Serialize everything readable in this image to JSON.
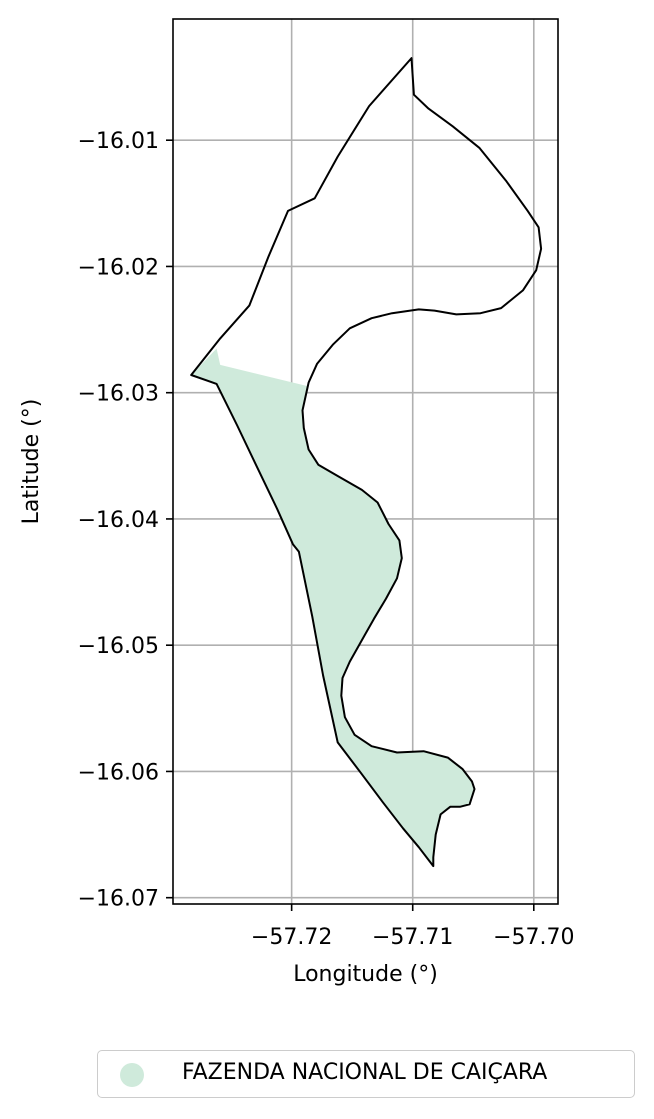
{
  "map": {
    "xlabel": "Longitude (°)",
    "ylabel": "Latitude (°)",
    "xlim": [
      -57.7298,
      -57.698
    ],
    "ylim": [
      -16.0705,
      -16.0004
    ],
    "xticks": [
      {
        "value": -57.72,
        "label": "−57.72"
      },
      {
        "value": -57.71,
        "label": "−57.71"
      },
      {
        "value": -57.7,
        "label": "−57.70"
      }
    ],
    "yticks": [
      {
        "value": -16.01,
        "label": "−16.01"
      },
      {
        "value": -16.02,
        "label": "−16.02"
      },
      {
        "value": -16.03,
        "label": "−16.03"
      },
      {
        "value": -16.04,
        "label": "−16.04"
      },
      {
        "value": -16.05,
        "label": "−16.05"
      },
      {
        "value": -16.06,
        "label": "−16.06"
      },
      {
        "value": -16.07,
        "label": "−16.07"
      }
    ],
    "grid": true,
    "fill_color": "#cfeadb",
    "outline_color": "#000000",
    "boundary": [
      [
        -57.7101,
        -16.0035
      ],
      [
        -57.7099,
        -16.0064
      ],
      [
        -57.7087,
        -16.0075
      ],
      [
        -57.7067,
        -16.0089
      ],
      [
        -57.7045,
        -16.0106
      ],
      [
        -57.7023,
        -16.0132
      ],
      [
        -57.7005,
        -16.0156
      ],
      [
        -57.6996,
        -16.0169
      ],
      [
        -57.6994,
        -16.0186
      ],
      [
        -57.6998,
        -16.0203
      ],
      [
        -57.7009,
        -16.0219
      ],
      [
        -57.7027,
        -16.0233
      ],
      [
        -57.7044,
        -16.0237
      ],
      [
        -57.7064,
        -16.0238
      ],
      [
        -57.7082,
        -16.0235
      ],
      [
        -57.7095,
        -16.0234
      ],
      [
        -57.7117,
        -16.0237
      ],
      [
        -57.7134,
        -16.0241
      ],
      [
        -57.7152,
        -16.0249
      ],
      [
        -57.7166,
        -16.0262
      ],
      [
        -57.7179,
        -16.0277
      ],
      [
        -57.7186,
        -16.0292
      ],
      [
        -57.7191,
        -16.0314
      ],
      [
        -57.719,
        -16.0328
      ],
      [
        -57.7186,
        -16.0345
      ],
      [
        -57.7178,
        -16.0357
      ],
      [
        -57.7162,
        -16.0366
      ],
      [
        -57.7142,
        -16.0377
      ],
      [
        -57.7129,
        -16.0387
      ],
      [
        -57.712,
        -16.0404
      ],
      [
        -57.7111,
        -16.0417
      ],
      [
        -57.7109,
        -16.0431
      ],
      [
        -57.7113,
        -16.0447
      ],
      [
        -57.7122,
        -16.0463
      ],
      [
        -57.7132,
        -16.0479
      ],
      [
        -57.7142,
        -16.0496
      ],
      [
        -57.7152,
        -16.0513
      ],
      [
        -57.7158,
        -16.0526
      ],
      [
        -57.7159,
        -16.054
      ],
      [
        -57.7156,
        -16.0557
      ],
      [
        -57.7148,
        -16.0571
      ],
      [
        -57.7134,
        -16.058
      ],
      [
        -57.7113,
        -16.0585
      ],
      [
        -57.7091,
        -16.0584
      ],
      [
        -57.7071,
        -16.0589
      ],
      [
        -57.7059,
        -16.0598
      ],
      [
        -57.7051,
        -16.0608
      ],
      [
        -57.7049,
        -16.0614
      ],
      [
        -57.7053,
        -16.0626
      ],
      [
        -57.7061,
        -16.0628
      ],
      [
        -57.7069,
        -16.0628
      ],
      [
        -57.7077,
        -16.0634
      ],
      [
        -57.7081,
        -16.065
      ],
      [
        -57.7083,
        -16.0668
      ],
      [
        -57.7083,
        -16.0675
      ],
      [
        -57.7095,
        -16.066
      ],
      [
        -57.7108,
        -16.0645
      ],
      [
        -57.7125,
        -16.0624
      ],
      [
        -57.7143,
        -16.0601
      ],
      [
        -57.7162,
        -16.0577
      ],
      [
        -57.7174,
        -16.0524
      ],
      [
        -57.7183,
        -16.0477
      ],
      [
        -57.7194,
        -16.0426
      ],
      [
        -57.7199,
        -16.042
      ],
      [
        -57.7212,
        -16.0392
      ],
      [
        -57.7229,
        -16.0358
      ],
      [
        -57.7245,
        -16.0326
      ],
      [
        -57.7262,
        -16.0293
      ],
      [
        -57.7283,
        -16.0286
      ],
      [
        -57.7259,
        -16.0257
      ],
      [
        -57.7235,
        -16.0231
      ],
      [
        -57.7219,
        -16.0192
      ],
      [
        -57.7203,
        -16.0156
      ],
      [
        -57.7181,
        -16.0146
      ],
      [
        -57.7162,
        -16.0113
      ],
      [
        -57.7136,
        -16.0073
      ],
      [
        -57.7101,
        -16.0035
      ]
    ],
    "filled_area": [
      [
        -57.7283,
        -16.0286
      ],
      [
        -57.7262,
        -16.0265
      ],
      [
        -57.7259,
        -16.0278
      ],
      [
        -57.7186,
        -16.0295
      ],
      [
        -57.7191,
        -16.0314
      ],
      [
        -57.719,
        -16.0328
      ],
      [
        -57.7186,
        -16.0345
      ],
      [
        -57.7178,
        -16.0357
      ],
      [
        -57.7162,
        -16.0366
      ],
      [
        -57.7142,
        -16.0377
      ],
      [
        -57.7129,
        -16.0387
      ],
      [
        -57.712,
        -16.0404
      ],
      [
        -57.7111,
        -16.0417
      ],
      [
        -57.7109,
        -16.0431
      ],
      [
        -57.7113,
        -16.0447
      ],
      [
        -57.7122,
        -16.0463
      ],
      [
        -57.7132,
        -16.0479
      ],
      [
        -57.7142,
        -16.0496
      ],
      [
        -57.7152,
        -16.0513
      ],
      [
        -57.7158,
        -16.0526
      ],
      [
        -57.7159,
        -16.054
      ],
      [
        -57.7156,
        -16.0557
      ],
      [
        -57.7148,
        -16.0571
      ],
      [
        -57.7134,
        -16.058
      ],
      [
        -57.7113,
        -16.0585
      ],
      [
        -57.7091,
        -16.0584
      ],
      [
        -57.7071,
        -16.0589
      ],
      [
        -57.7059,
        -16.0598
      ],
      [
        -57.7051,
        -16.0608
      ],
      [
        -57.7049,
        -16.0614
      ],
      [
        -57.7053,
        -16.0626
      ],
      [
        -57.7061,
        -16.0628
      ],
      [
        -57.7069,
        -16.0628
      ],
      [
        -57.7077,
        -16.0634
      ],
      [
        -57.7081,
        -16.065
      ],
      [
        -57.7083,
        -16.0668
      ],
      [
        -57.7083,
        -16.0675
      ],
      [
        -57.7095,
        -16.066
      ],
      [
        -57.7108,
        -16.0645
      ],
      [
        -57.7125,
        -16.0624
      ],
      [
        -57.7143,
        -16.0601
      ],
      [
        -57.7162,
        -16.0577
      ],
      [
        -57.7174,
        -16.0524
      ],
      [
        -57.7183,
        -16.0477
      ],
      [
        -57.7194,
        -16.0426
      ],
      [
        -57.7199,
        -16.042
      ],
      [
        -57.7212,
        -16.0392
      ],
      [
        -57.7229,
        -16.0358
      ],
      [
        -57.7245,
        -16.0326
      ],
      [
        -57.7262,
        -16.0293
      ],
      [
        -57.7283,
        -16.0286
      ]
    ]
  },
  "legend": {
    "label": "FAZENDA NACIONAL DE CAIÇARA",
    "marker_color": "#cfeadb"
  }
}
